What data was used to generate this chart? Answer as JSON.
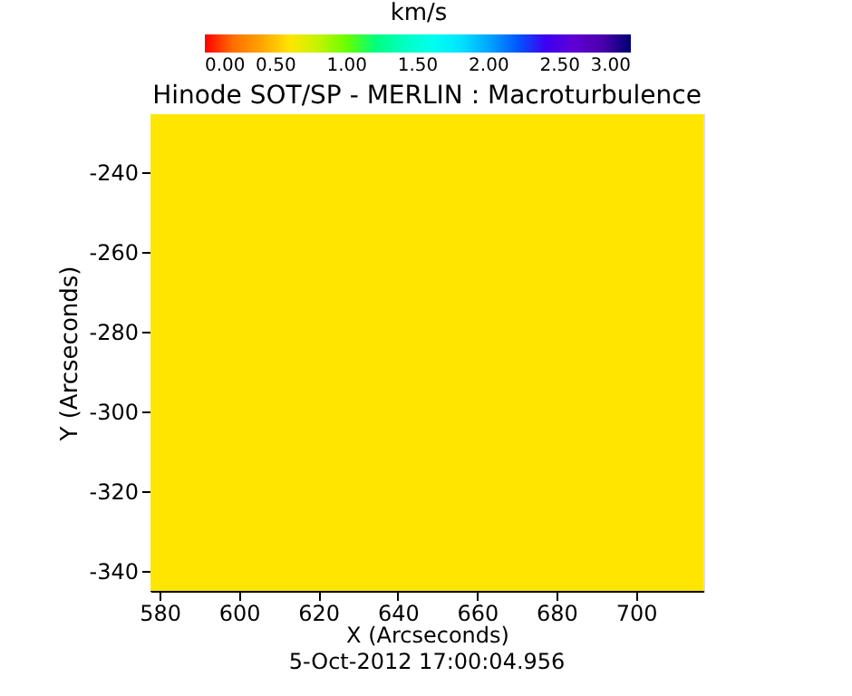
{
  "chart_data": {
    "type": "heatmap",
    "title": "Hinode SOT/SP - MERLIN : Macroturbulence",
    "xlabel": "X (Arcseconds)",
    "ylabel": "Y (Arcseconds)",
    "clabel": "km/s",
    "annotations": [
      "5-Oct-2012 17:00:04.956"
    ],
    "cells": [
      [
        0.6
      ]
    ],
    "xlim": [
      577.7,
      717
    ],
    "ylim": [
      -345,
      -225.5
    ],
    "xticks": [
      580,
      600,
      620,
      640,
      660,
      680,
      700
    ],
    "yticks": [
      -240,
      -260,
      -280,
      -300,
      -320,
      -340
    ],
    "clim": [
      0,
      3
    ],
    "cticks": [
      {
        "value": 0,
        "label": "0.00"
      },
      {
        "value": 0.5,
        "label": "0.50"
      },
      {
        "value": 1,
        "label": "1.00"
      },
      {
        "value": 1.5,
        "label": "1.50"
      },
      {
        "value": 2,
        "label": "2.00"
      },
      {
        "value": 2.5,
        "label": "2.50"
      },
      {
        "value": 3,
        "label": "3.00"
      }
    ]
  }
}
